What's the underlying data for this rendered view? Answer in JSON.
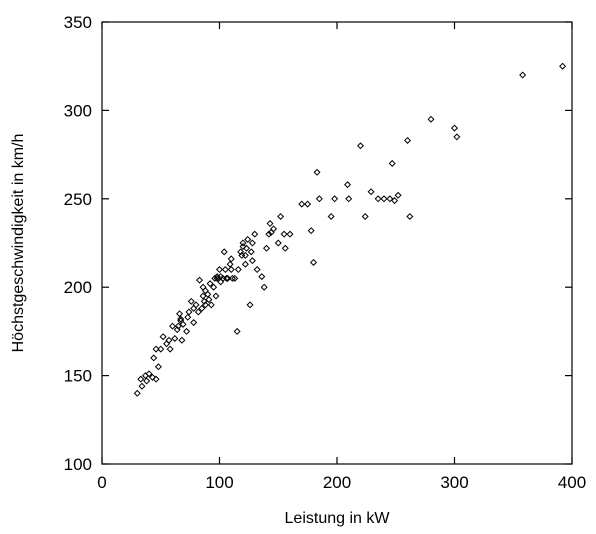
{
  "colors": {
    "background": "#ffffff",
    "axis": "#000000",
    "marker": "#000000"
  },
  "chart_data": {
    "type": "scatter",
    "title": "",
    "xlabel": "Leistung in kW",
    "ylabel": "Höchstgeschwindigkeit in km/h",
    "xlim": [
      0,
      400
    ],
    "ylim": [
      100,
      350
    ],
    "xticks": [
      0,
      100,
      200,
      300,
      400
    ],
    "yticks": [
      100,
      150,
      200,
      250,
      300,
      350
    ],
    "xtick_labels": [
      "0",
      "100",
      "200",
      "300",
      "400"
    ],
    "ytick_labels": [
      "100",
      "150",
      "200",
      "250",
      "300",
      "350"
    ],
    "grid": false,
    "legend": "none",
    "marker": "diamond-open",
    "series": [
      {
        "x": [
          30,
          33,
          34,
          37,
          38,
          40,
          43,
          44,
          46,
          46,
          48,
          50,
          52,
          55,
          57,
          58,
          60,
          62,
          64,
          65,
          66,
          67,
          68,
          67,
          69,
          72,
          73,
          74,
          76,
          78,
          78,
          80,
          82,
          83,
          85,
          86,
          86,
          87,
          88,
          88,
          90,
          91,
          92,
          93,
          95,
          96,
          97,
          98,
          98,
          100,
          101,
          101,
          103,
          104,
          105,
          106,
          107,
          109,
          110,
          110,
          111,
          113,
          115,
          116,
          118,
          119,
          120,
          120,
          122,
          122,
          123,
          124,
          126,
          127,
          128,
          128,
          130,
          132,
          136,
          138,
          140,
          142,
          143,
          144,
          146,
          150,
          152,
          155,
          156,
          160,
          170,
          175,
          178,
          180,
          183,
          185,
          195,
          198,
          209,
          210,
          220,
          224,
          229,
          235,
          240,
          245,
          247,
          249,
          252,
          260,
          262,
          280,
          300,
          302,
          358,
          392
        ],
        "y": [
          140,
          148,
          144,
          150,
          147,
          151,
          149,
          160,
          165,
          148,
          155,
          165,
          172,
          168,
          170,
          165,
          178,
          171,
          176,
          178,
          185,
          181,
          170,
          182,
          179,
          175,
          183,
          186,
          192,
          188,
          180,
          190,
          186,
          204,
          188,
          195,
          200,
          192,
          190,
          198,
          196,
          193,
          202,
          190,
          200,
          205,
          195,
          206,
          205,
          210,
          206,
          203,
          205,
          220,
          210,
          205,
          205,
          213,
          216,
          210,
          205,
          205,
          175,
          210,
          220,
          218,
          223,
          225,
          213,
          218,
          222,
          227,
          190,
          220,
          225,
          215,
          230,
          210,
          206,
          200,
          222,
          230,
          236,
          231,
          233,
          225,
          240,
          230,
          222,
          230,
          247,
          247,
          232,
          214,
          265,
          250,
          240,
          250,
          258,
          250,
          280,
          240,
          254,
          250,
          250,
          250,
          270,
          249,
          252,
          283,
          240,
          295,
          290,
          285,
          320,
          325
        ]
      }
    ]
  }
}
